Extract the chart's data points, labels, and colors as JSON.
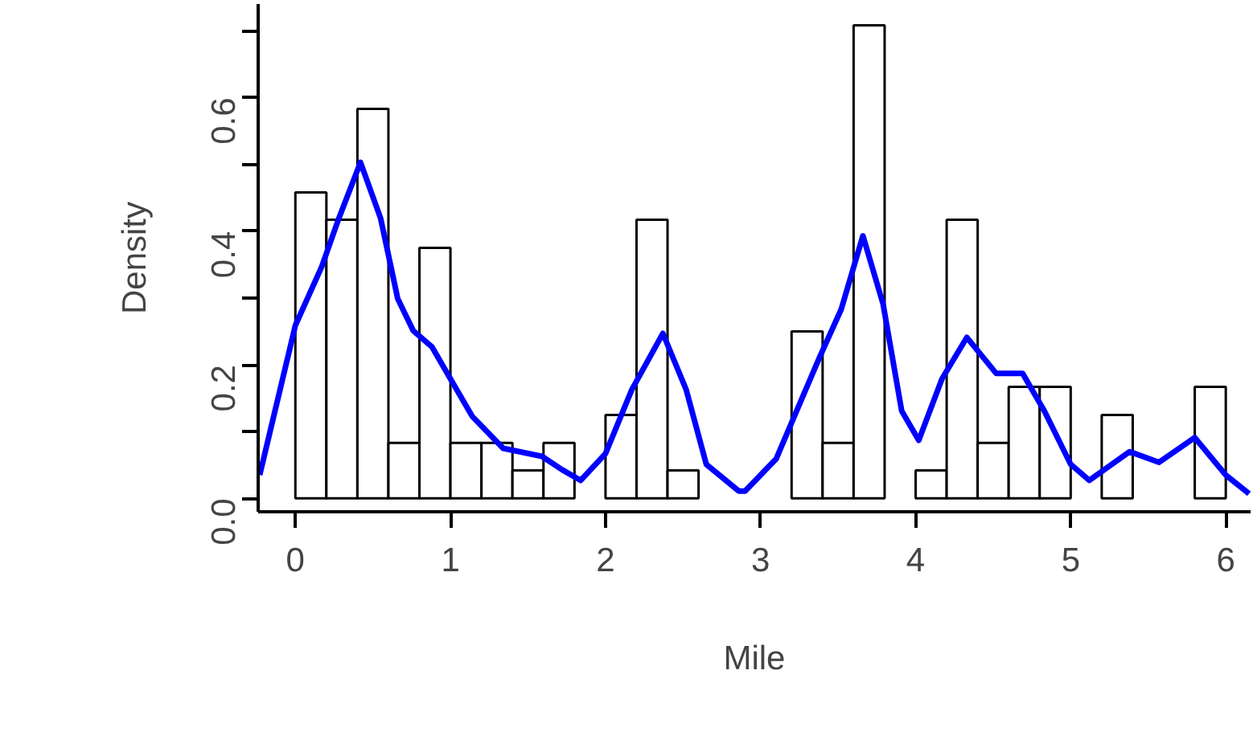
{
  "chart_data": {
    "type": "histogram",
    "xlabel": "Mile",
    "ylabel": "Density",
    "xlim": [
      -0.24,
      6.16
    ],
    "ylim": [
      -0.02,
      0.74
    ],
    "xticks": [
      0,
      1,
      2,
      3,
      4,
      5,
      6
    ],
    "yticks": [
      {
        "value": 0,
        "label": "0.0"
      },
      {
        "value": 0.1,
        "label": null
      },
      {
        "value": 0.2,
        "label": "0.2"
      },
      {
        "value": 0.3,
        "label": null
      },
      {
        "value": 0.4,
        "label": "0.4"
      },
      {
        "value": 0.5,
        "label": null
      },
      {
        "value": 0.6,
        "label": "0.6"
      },
      {
        "value": 0.7,
        "label": null
      }
    ],
    "grid": false,
    "series": [
      {
        "color": "#ffffff",
        "bins": [
          0,
          0.2,
          0.4,
          0.6,
          0.8,
          1.0,
          1.2,
          1.4,
          1.6,
          1.8,
          2.0,
          2.2,
          2.4,
          2.6,
          2.8,
          3.0,
          3.2,
          3.4,
          3.6,
          3.8,
          4.0,
          4.2,
          4.4,
          4.6,
          4.8,
          5.0,
          5.2,
          5.4,
          5.6,
          5.8,
          6.0
        ],
        "values": [
          0.458,
          0.417,
          0.583,
          0.083,
          0.375,
          0.083,
          0.083,
          0.042,
          0.083,
          0,
          0.125,
          0.417,
          0.042,
          0,
          0,
          0,
          0.25,
          0.083,
          0.708,
          0,
          0.042,
          0.417,
          0.083,
          0.167,
          0.167,
          0,
          0.125,
          0,
          0,
          0.167
        ]
      },
      {
        "type": "line",
        "color": "#0000ff",
        "line_style": "solid",
        "x": [
          -0.23,
          0,
          0.17,
          0.28,
          0.42,
          0.55,
          0.66,
          0.76,
          0.88,
          1.0,
          1.14,
          1.34,
          1.59,
          1.72,
          1.84,
          2.0,
          2.17,
          2.37,
          2.52,
          2.65,
          2.86,
          2.9,
          3.1,
          3.38,
          3.52,
          3.66,
          3.79,
          3.91,
          4.02,
          4.17,
          4.33,
          4.52,
          4.69,
          4.83,
          5.0,
          5.12,
          5.38,
          5.57,
          5.8,
          6.0,
          6.15
        ],
        "values": [
          0.035,
          0.259,
          0.347,
          0.419,
          0.503,
          0.419,
          0.299,
          0.251,
          0.227,
          0.179,
          0.123,
          0.075,
          0.063,
          0.043,
          0.027,
          0.067,
          0.163,
          0.247,
          0.163,
          0.051,
          0.011,
          0.011,
          0.059,
          0.211,
          0.283,
          0.393,
          0.291,
          0.131,
          0.087,
          0.179,
          0.241,
          0.187,
          0.187,
          0.131,
          0.051,
          0.027,
          0.07,
          0.054,
          0.091,
          0.035,
          0.007
        ]
      }
    ]
  }
}
